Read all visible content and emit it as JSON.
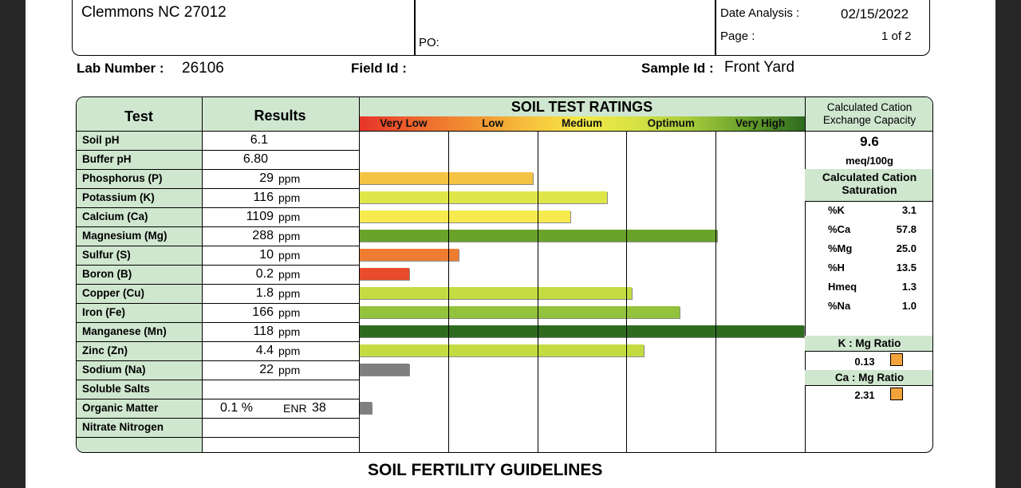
{
  "header": {
    "address_line": "Clemmons NC   27012",
    "po_label": "PO:",
    "date_analysis_label": "Date Analysis :",
    "date_analysis_value": "02/15/2022",
    "page_label": "Page :",
    "page_value": "1 of 2"
  },
  "sample": {
    "lab_number_label": "Lab Number :",
    "lab_number_value": "26106",
    "field_id_label": "Field Id :",
    "field_id_value": "",
    "sample_id_label": "Sample Id :",
    "sample_id_value": "Front Yard"
  },
  "table": {
    "col_test": "Test",
    "col_results": "Results",
    "ratings_title": "SOIL TEST RATINGS",
    "rating_categories": [
      "Very Low",
      "Low",
      "Medium",
      "Optimum",
      "Very High"
    ],
    "rows": [
      {
        "test": "Soil pH",
        "value": "6.1",
        "unit": "",
        "rating": null,
        "color": ""
      },
      {
        "test": "Buffer pH",
        "value": "6.80",
        "unit": "",
        "rating": null,
        "color": ""
      },
      {
        "test": "Phosphorus (P)",
        "value": "29",
        "unit": "ppm",
        "rating": 1.95,
        "color": "#f5c343"
      },
      {
        "test": "Potassium (K)",
        "value": "116",
        "unit": "ppm",
        "rating": 2.78,
        "color": "#dee64a"
      },
      {
        "test": "Calcium (Ca)",
        "value": "1109",
        "unit": "ppm",
        "rating": 2.37,
        "color": "#f6ea4f"
      },
      {
        "test": "Magnesium (Mg)",
        "value": "288",
        "unit": "ppm",
        "rating": 4.02,
        "color": "#6aa32c"
      },
      {
        "test": "Sulfur (S)",
        "value": "10",
        "unit": "ppm",
        "rating": 1.12,
        "color": "#ee7d32"
      },
      {
        "test": "Boron (B)",
        "value": "0.2",
        "unit": "ppm",
        "rating": 0.56,
        "color": "#e84c2b"
      },
      {
        "test": "Copper (Cu)",
        "value": "1.8",
        "unit": "ppm",
        "rating": 3.06,
        "color": "#c4dc42"
      },
      {
        "test": "Iron (Fe)",
        "value": "166",
        "unit": "ppm",
        "rating": 3.6,
        "color": "#93c23c"
      },
      {
        "test": "Manganese (Mn)",
        "value": "118",
        "unit": "ppm",
        "rating": 4.99,
        "color": "#2e6b1f"
      },
      {
        "test": "Zinc (Zn)",
        "value": "4.4",
        "unit": "ppm",
        "rating": 3.19,
        "color": "#c4dc42"
      },
      {
        "test": "Sodium (Na)",
        "value": "22",
        "unit": "ppm",
        "rating": 0.56,
        "color": "#7f7f7f"
      },
      {
        "test": "Soluble Salts",
        "value": "",
        "unit": "",
        "rating": null,
        "color": ""
      },
      {
        "test": "Organic Matter",
        "value": "0.1 %",
        "unit": "",
        "enr_label": "ENR",
        "enr_value": "38",
        "rating": 0.14,
        "color": "#7f7f7f"
      },
      {
        "test": "Nitrate Nitrogen",
        "value": "",
        "unit": "",
        "rating": null,
        "color": ""
      }
    ]
  },
  "cec": {
    "title": "Calculated Cation Exchange Capacity",
    "value": "9.6",
    "unit": "meq/100g",
    "saturation_title": "Calculated Cation Saturation",
    "saturation": [
      {
        "label": "%K",
        "value": "3.1"
      },
      {
        "label": "%Ca",
        "value": "57.8"
      },
      {
        "label": "%Mg",
        "value": "25.0"
      },
      {
        "label": "%H",
        "value": "13.5"
      },
      {
        "label": "Hmeq",
        "value": "1.3"
      },
      {
        "label": "%Na",
        "value": "1.0"
      }
    ],
    "k_mg_label": "K : Mg Ratio",
    "k_mg_value": "0.13",
    "ca_mg_label": "Ca : Mg Ratio",
    "ca_mg_value": "2.31",
    "ratio_color": "#f4a33c"
  },
  "footer": {
    "guidelines_title": "SOIL FERTILITY GUIDELINES"
  }
}
